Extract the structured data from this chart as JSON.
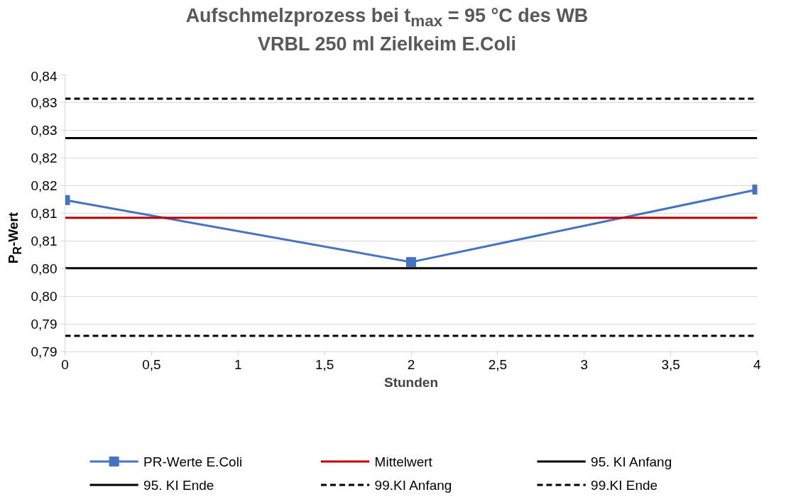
{
  "chart_data": {
    "type": "line",
    "title": "Aufschmelzprozess bei t$_{max}$ = 95 °C des WB\nVRBL 250 ml Zielkeim E.Coli",
    "xlabel": "Stunden",
    "ylabel": "P$_{R}$-Wert",
    "xlim": [
      0,
      4
    ],
    "xticks": [
      0,
      {
        "value": 0.5,
        "label": "0,5"
      },
      1,
      {
        "value": 1.5,
        "label": "1,5"
      },
      2,
      {
        "value": 2.5,
        "label": "2,5"
      },
      3,
      {
        "value": 3.5,
        "label": "3,5"
      },
      4
    ],
    "ylim": [
      0.79,
      0.84
    ],
    "yticks": [
      {
        "value": 0.79,
        "label": "0,79"
      },
      {
        "value": 0.795,
        "label": "0,79"
      },
      {
        "value": 0.8,
        "label": "0,80"
      },
      {
        "value": 0.805,
        "label": "0,80"
      },
      {
        "value": 0.81,
        "label": "0,81"
      },
      {
        "value": 0.815,
        "label": "0,81"
      },
      {
        "value": 0.82,
        "label": "0,82"
      },
      {
        "value": 0.825,
        "label": "0,82"
      },
      {
        "value": 0.83,
        "label": "0,83"
      },
      {
        "value": 0.835,
        "label": "0,83"
      },
      {
        "value": 0.84,
        "label": "0,84"
      }
    ],
    "grid": "y",
    "legend": "bottom",
    "series": [
      {
        "name": "PR-Werte E.Coli",
        "color": "#4472c4",
        "x": [
          0,
          2,
          4
        ],
        "values": [
          0.8174,
          0.8062,
          0.8193
        ],
        "marker": "square",
        "line_style": "solid"
      },
      {
        "name": "Mittelwert",
        "color": "#c00000",
        "x": [
          0,
          4
        ],
        "values": [
          0.8142,
          0.8142
        ],
        "marker": "none",
        "line_style": "solid"
      },
      {
        "name": "95. KI Anfang",
        "color": "#000000",
        "x": [
          0,
          4
        ],
        "values": [
          0.8051,
          0.8051
        ],
        "marker": "none",
        "line_style": "solid"
      },
      {
        "name": "95. KI Ende",
        "color": "#000000",
        "x": [
          0,
          4
        ],
        "values": [
          0.8286,
          0.8286
        ],
        "marker": "none",
        "line_style": "solid"
      },
      {
        "name": "99.KI Anfang",
        "color": "#000000",
        "x": [
          0,
          4
        ],
        "values": [
          0.7929,
          0.7929
        ],
        "marker": "none",
        "line_style": "dashed"
      },
      {
        "name": "99.KI Ende",
        "color": "#000000",
        "x": [
          0,
          4
        ],
        "values": [
          0.8357,
          0.8357
        ],
        "marker": "none",
        "line_style": "dashed"
      }
    ]
  }
}
